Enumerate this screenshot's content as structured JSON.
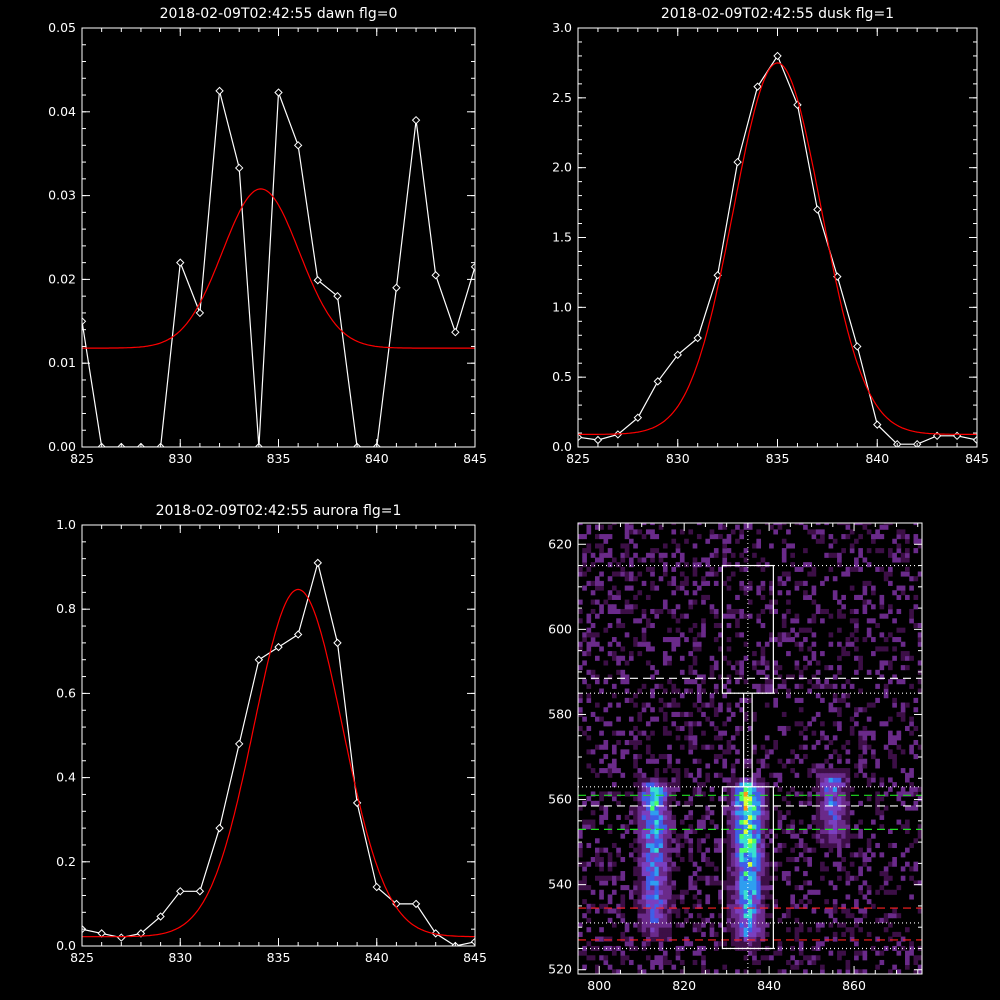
{
  "chart_data": [
    {
      "type": "line",
      "title": "2018-02-09T02:42:55 dawn flg=0",
      "xlim": [
        825,
        845
      ],
      "ylim": [
        0,
        0.05
      ],
      "xticks": [
        825,
        830,
        835,
        840,
        845
      ],
      "yticks": [
        0.0,
        0.01,
        0.02,
        0.03,
        0.04,
        0.05
      ],
      "ytick_labels": [
        "0.00",
        "0.01",
        "0.02",
        "0.03",
        "0.04",
        "0.05"
      ],
      "series": [
        {
          "color": "#ffffff",
          "markers": true,
          "x": [
            825,
            826,
            827,
            828,
            829,
            830,
            831,
            832,
            833,
            834,
            835,
            836,
            837,
            838,
            839,
            840,
            841,
            842,
            843,
            844,
            845
          ],
          "y": [
            0.015,
            0.0,
            0.0,
            0.0,
            0.0,
            0.022,
            0.016,
            0.0425,
            0.0333,
            0.0,
            0.0423,
            0.036,
            0.0199,
            0.018,
            0.0,
            0.0,
            0.019,
            0.039,
            0.0205,
            0.0137,
            0.0215
          ]
        },
        {
          "color": "#ff0000",
          "markers": false,
          "fit": "gaussian",
          "amplitude": 0.019,
          "center": 834.1,
          "sigma": 1.95,
          "offset": 0.0118
        }
      ]
    },
    {
      "type": "line",
      "title": "2018-02-09T02:42:55 dusk flg=1",
      "xlim": [
        825,
        845
      ],
      "ylim": [
        0,
        3.0
      ],
      "xticks": [
        825,
        830,
        835,
        840,
        845
      ],
      "yticks": [
        0.0,
        0.5,
        1.0,
        1.5,
        2.0,
        2.5,
        3.0
      ],
      "ytick_labels": [
        "0.0",
        "0.5",
        "1.0",
        "1.5",
        "2.0",
        "2.5",
        "3.0"
      ],
      "series": [
        {
          "color": "#ffffff",
          "markers": true,
          "x": [
            825,
            826,
            827,
            828,
            829,
            830,
            831,
            832,
            833,
            834,
            835,
            836,
            837,
            838,
            839,
            840,
            841,
            842,
            843,
            844,
            845
          ],
          "y": [
            0.07,
            0.05,
            0.09,
            0.21,
            0.47,
            0.66,
            0.78,
            1.23,
            2.04,
            2.58,
            2.8,
            2.45,
            1.7,
            1.22,
            0.72,
            0.16,
            0.02,
            0.02,
            0.08,
            0.08,
            0.05
          ]
        },
        {
          "color": "#ff0000",
          "markers": false,
          "fit": "gaussian",
          "amplitude": 2.66,
          "center": 835.0,
          "sigma": 2.2,
          "offset": 0.09
        }
      ]
    },
    {
      "type": "line",
      "title": "2018-02-09T02:42:55 aurora flg=1",
      "xlim": [
        825,
        845
      ],
      "ylim": [
        0,
        1.0
      ],
      "xticks": [
        825,
        830,
        835,
        840,
        845
      ],
      "yticks": [
        0.0,
        0.2,
        0.4,
        0.6,
        0.8,
        1.0
      ],
      "ytick_labels": [
        "0.0",
        "0.2",
        "0.4",
        "0.6",
        "0.8",
        "1.0"
      ],
      "series": [
        {
          "color": "#ffffff",
          "markers": true,
          "x": [
            825,
            826,
            827,
            828,
            829,
            830,
            831,
            832,
            833,
            834,
            835,
            836,
            837,
            838,
            839,
            840,
            841,
            842,
            843,
            844,
            845
          ],
          "y": [
            0.04,
            0.03,
            0.02,
            0.03,
            0.07,
            0.13,
            0.13,
            0.28,
            0.48,
            0.68,
            0.71,
            0.74,
            0.91,
            0.72,
            0.34,
            0.14,
            0.1,
            0.1,
            0.03,
            0.0,
            0.01
          ]
        },
        {
          "color": "#ff0000",
          "markers": false,
          "fit": "gaussian",
          "amplitude": 0.825,
          "center": 836.0,
          "sigma": 2.25,
          "offset": 0.022
        }
      ]
    },
    {
      "type": "heatmap",
      "title": "",
      "xlim": [
        795,
        876
      ],
      "ylim": [
        519,
        625
      ],
      "xticks": [
        800,
        820,
        840,
        860
      ],
      "yticks": [
        520,
        540,
        560,
        580,
        600,
        620
      ],
      "colormap": [
        "#000000",
        "#3c0f46",
        "#6a2a8a",
        "#7a3fc0",
        "#3f5ee8",
        "#2e9ef0",
        "#38e0d0",
        "#4cff66",
        "#d6ff35",
        "#ff9a18",
        "#ff2a10"
      ],
      "emission_columns": [
        {
          "center_x": 813,
          "half_width": 3.5,
          "y_min": 527,
          "y_max": 564,
          "peak": 0.72
        },
        {
          "center_x": 835,
          "half_width": 3.5,
          "y_min": 525,
          "y_max": 564,
          "peak": 1.0
        },
        {
          "center_x": 855,
          "half_width": 3.5,
          "y_min": 548,
          "y_max": 566,
          "peak": 0.55
        }
      ],
      "overlays": {
        "box_upper": {
          "x": [
            829,
            841
          ],
          "y": [
            585,
            615
          ]
        },
        "box_lower": {
          "x": [
            829,
            841
          ],
          "y": [
            525,
            563
          ]
        },
        "connector_x": [
          834,
          836
        ],
        "vertical_dotted_x": 835,
        "white_dotted_y": [
          615,
          585,
          563,
          531,
          525
        ],
        "white_dashed_y": [
          588.5,
          558.5
        ],
        "green_dashed_y": [
          561,
          553
        ],
        "red_dashed_y": [
          534.5,
          527
        ]
      }
    }
  ]
}
